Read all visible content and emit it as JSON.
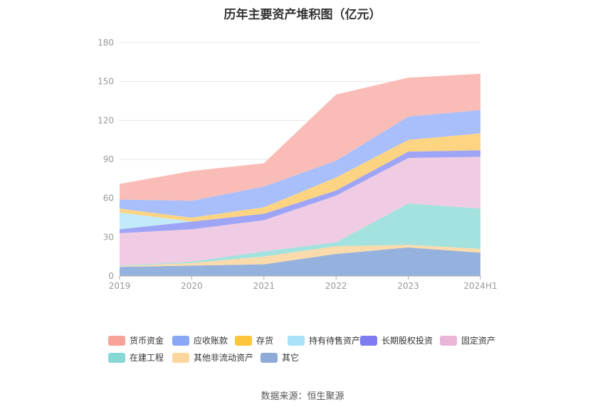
{
  "title": "历年主要资产堆积图（亿元）",
  "source": "数据来源：恒生聚源",
  "chart_data": {
    "type": "area",
    "stacked": true,
    "categories": [
      "2019",
      "2020",
      "2021",
      "2022",
      "2023",
      "2024H1"
    ],
    "ylim": [
      0,
      180
    ],
    "yticks": [
      0,
      30,
      60,
      90,
      120,
      150,
      180
    ],
    "grid": true,
    "legend_position": "bottom",
    "series": [
      {
        "name": "其它",
        "color": "#8eaedb",
        "values": [
          7,
          8,
          9,
          17,
          22,
          18
        ]
      },
      {
        "name": "其他非流动资产",
        "color": "#fbd9a6",
        "values": [
          0.5,
          2,
          6,
          6,
          2,
          3
        ]
      },
      {
        "name": "在建工程",
        "color": "#9ee0dc",
        "values": [
          0.5,
          1,
          4,
          3,
          32,
          31
        ]
      },
      {
        "name": "固定资产",
        "color": "#eec9e1",
        "values": [
          25,
          25,
          24,
          36,
          35,
          40
        ]
      },
      {
        "name": "长期股权投资",
        "color": "#9aa0f5",
        "values": [
          3,
          6,
          5,
          4,
          5,
          5
        ]
      },
      {
        "name": "持有待售资产",
        "color": "#bfe9fb",
        "values": [
          13,
          0,
          0,
          0,
          0,
          0
        ]
      },
      {
        "name": "存货",
        "color": "#fdd27a",
        "values": [
          3,
          3,
          5,
          10,
          9,
          13
        ]
      },
      {
        "name": "应收账款",
        "color": "#a3bcfb",
        "values": [
          7,
          13,
          16,
          13,
          18,
          18
        ]
      },
      {
        "name": "货币资金",
        "color": "#fab8b2",
        "values": [
          12,
          23,
          18,
          51,
          30,
          28
        ]
      }
    ],
    "legend_order": [
      "货币资金",
      "应收账款",
      "存货",
      "持有待售资产",
      "长期股权投资",
      "固定资产",
      "在建工程",
      "其他非流动资产",
      "其它"
    ],
    "legend_swatch_colors": {
      "货币资金": "#f7a39a",
      "应收账款": "#8aa7f5",
      "存货": "#fcc53c",
      "持有待售资产": "#a8e2f8",
      "长期股权投资": "#7e7cf0",
      "固定资产": "#eab6d7",
      "在建工程": "#86d8d4",
      "其他非流动资产": "#fcd69c",
      "其它": "#8eaad8"
    }
  }
}
